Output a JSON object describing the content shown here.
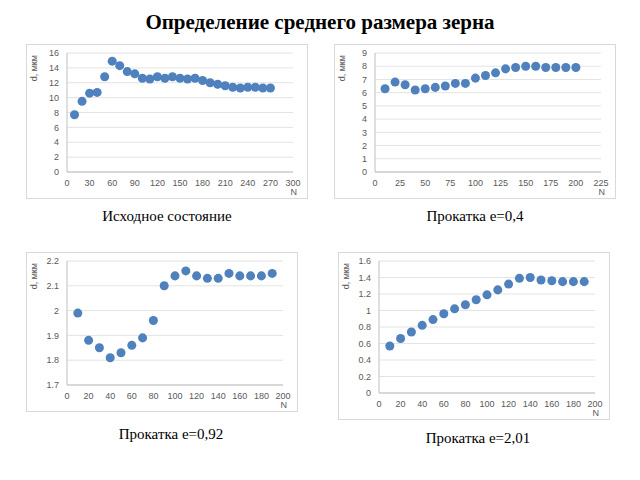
{
  "title": "Определение среднего размера зерна",
  "chart_data": [
    {
      "type": "scatter",
      "title": "Исходное состояние",
      "xlabel": "N",
      "ylabel": "d, мкм",
      "color": "#4f81bd",
      "marker": "circle",
      "grid": true,
      "x": [
        10,
        20,
        30,
        40,
        50,
        60,
        70,
        80,
        90,
        100,
        110,
        120,
        130,
        140,
        150,
        160,
        170,
        180,
        190,
        200,
        210,
        220,
        230,
        240,
        250,
        260,
        270
      ],
      "values": [
        7.7,
        9.5,
        10.6,
        10.7,
        12.8,
        14.9,
        14.3,
        13.5,
        13.2,
        12.6,
        12.5,
        12.8,
        12.6,
        12.8,
        12.6,
        12.5,
        12.6,
        12.3,
        12.0,
        11.8,
        11.6,
        11.4,
        11.3,
        11.4,
        11.4,
        11.3,
        11.3
      ],
      "xlim": [
        0,
        300
      ],
      "xticks": [
        0,
        30,
        60,
        90,
        120,
        150,
        180,
        210,
        240,
        270,
        300
      ],
      "ylim": [
        0,
        16
      ],
      "yticks": [
        0,
        2,
        4,
        6,
        8,
        10,
        12,
        14,
        16
      ]
    },
    {
      "type": "scatter",
      "title": "Прокатка e=0,4",
      "xlabel": "N",
      "ylabel": "d, мкм",
      "color": "#4f81bd",
      "marker": "circle",
      "grid": true,
      "x": [
        10,
        20,
        30,
        40,
        50,
        60,
        70,
        80,
        90,
        100,
        110,
        120,
        130,
        140,
        150,
        160,
        170,
        180,
        190,
        200
      ],
      "values": [
        6.3,
        6.8,
        6.6,
        6.2,
        6.3,
        6.4,
        6.5,
        6.7,
        6.7,
        7.1,
        7.3,
        7.5,
        7.8,
        7.9,
        8.0,
        8.0,
        7.9,
        7.9,
        7.9,
        7.9
      ],
      "xlim": [
        0,
        225
      ],
      "xticks": [
        0,
        25,
        50,
        75,
        100,
        125,
        150,
        175,
        200,
        225
      ],
      "ylim": [
        0,
        9
      ],
      "yticks": [
        0,
        1,
        2,
        3,
        4,
        5,
        6,
        7,
        8,
        9
      ]
    },
    {
      "type": "scatter",
      "title": "Прокатка e=0,92",
      "xlabel": "N",
      "ylabel": "d, мкм",
      "color": "#4f81bd",
      "marker": "circle",
      "grid": true,
      "x": [
        10,
        20,
        30,
        40,
        50,
        60,
        70,
        80,
        90,
        100,
        110,
        120,
        130,
        140,
        150,
        160,
        170,
        180,
        190
      ],
      "values": [
        1.99,
        1.88,
        1.85,
        1.81,
        1.83,
        1.86,
        1.89,
        1.96,
        2.1,
        2.14,
        2.16,
        2.14,
        2.13,
        2.13,
        2.15,
        2.14,
        2.14,
        2.14,
        2.15
      ],
      "xlim": [
        0,
        200
      ],
      "xticks": [
        0,
        20,
        40,
        60,
        80,
        100,
        120,
        140,
        160,
        180,
        200
      ],
      "ylim": [
        1.7,
        2.2
      ],
      "yticks": [
        1.7,
        1.8,
        1.9,
        2,
        2.1,
        2.2
      ]
    },
    {
      "type": "scatter",
      "title": "Прокатка e=2,01",
      "xlabel": "N",
      "ylabel": "d, мкм",
      "color": "#4f81bd",
      "marker": "circle",
      "grid": true,
      "x": [
        10,
        20,
        30,
        40,
        50,
        60,
        70,
        80,
        90,
        100,
        110,
        120,
        130,
        140,
        150,
        160,
        170,
        180,
        190
      ],
      "values": [
        0.57,
        0.66,
        0.74,
        0.82,
        0.89,
        0.96,
        1.02,
        1.07,
        1.13,
        1.19,
        1.25,
        1.32,
        1.39,
        1.4,
        1.37,
        1.36,
        1.35,
        1.35,
        1.35
      ],
      "xlim": [
        0,
        200
      ],
      "xticks": [
        0,
        20,
        40,
        60,
        80,
        100,
        120,
        140,
        160,
        180,
        200
      ],
      "ylim": [
        0,
        1.6
      ],
      "yticks": [
        0,
        0.2,
        0.4,
        0.6,
        0.8,
        1,
        1.2,
        1.4,
        1.6
      ]
    }
  ]
}
